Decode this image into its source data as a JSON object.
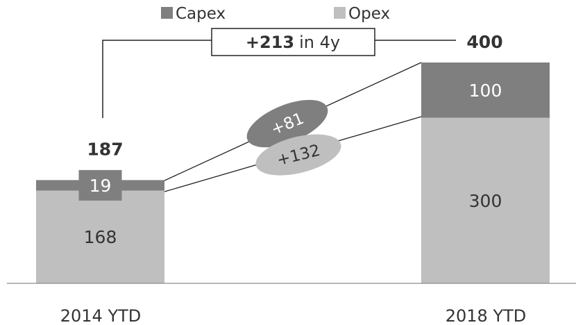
{
  "chart_data": {
    "type": "bar",
    "stacked": true,
    "categories": [
      "2014 YTD",
      "2018 YTD"
    ],
    "series": [
      {
        "name": "Capex",
        "values": [
          19,
          100
        ],
        "color": "#7f7f7f"
      },
      {
        "name": "Opex",
        "values": [
          168,
          300
        ],
        "color": "#bfbfbf"
      }
    ],
    "totals": [
      "187",
      "400"
    ],
    "legend_position": "top",
    "grid": false,
    "ylim": [
      0,
      400
    ],
    "annotations": {
      "total_change_value": "+213",
      "total_change_suffix": "in 4y",
      "capex_change": "+81",
      "opex_change": "+132"
    }
  }
}
